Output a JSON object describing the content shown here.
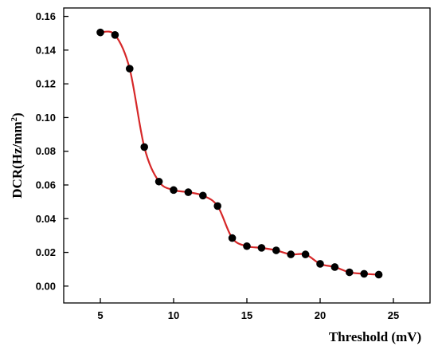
{
  "chart_data": {
    "type": "line",
    "xlabel": "Threshold (mV)",
    "ylabel_main": "DCR(Hz/mm",
    "ylabel_sup": "2",
    "ylabel_close": ")",
    "xlim": [
      2.5,
      27.5
    ],
    "ylim": [
      -0.01,
      0.165
    ],
    "xticks": [
      5,
      10,
      15,
      20,
      25
    ],
    "xtick_labels": [
      "5",
      "10",
      "15",
      "20",
      "25"
    ],
    "yticks": [
      0.0,
      0.02,
      0.04,
      0.06,
      0.08,
      0.1,
      0.12,
      0.14,
      0.16
    ],
    "ytick_labels": [
      "0.00",
      "0.02",
      "0.04",
      "0.06",
      "0.08",
      "0.10",
      "0.12",
      "0.14",
      "0.16"
    ],
    "grid": false,
    "series": [
      {
        "x": [
          5,
          6,
          7,
          8,
          9,
          10,
          11,
          12,
          13,
          14,
          15,
          16,
          17,
          18,
          19,
          20,
          21,
          22,
          23,
          24
        ],
        "y": [
          0.1505,
          0.149,
          0.129,
          0.0825,
          0.062,
          0.057,
          0.0557,
          0.0537,
          0.0475,
          0.0285,
          0.0237,
          0.0227,
          0.0212,
          0.0188,
          0.0188,
          0.0132,
          0.0113,
          0.0082,
          0.0073,
          0.0068
        ]
      }
    ],
    "colors": {
      "line": "#d62728",
      "marker": "#000000",
      "axis": "#000000"
    }
  }
}
